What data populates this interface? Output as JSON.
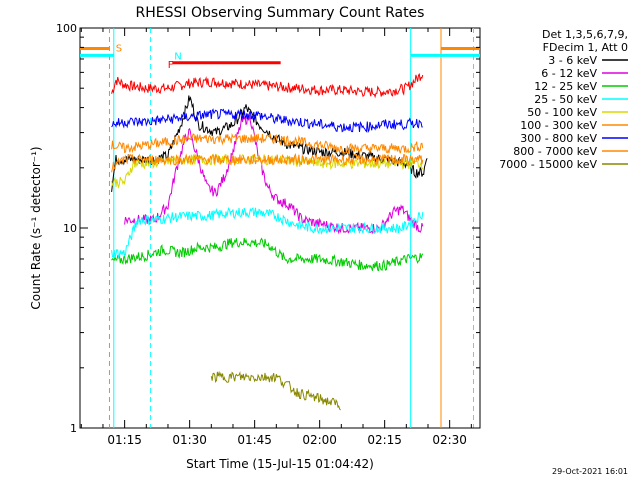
{
  "chart_data": {
    "type": "line",
    "title": "RHESSI Observing Summary Count Rates",
    "xlabel": "Start Time (15-Jul-15 01:04:42)",
    "ylabel": "Count Rate (s⁻¹ detector⁻¹)",
    "y_scale": "log",
    "ylim": [
      1,
      100
    ],
    "y_ticks": [
      1,
      10,
      100
    ],
    "y_tick_labels": [
      "1",
      "10",
      "100"
    ],
    "xlim": [
      "01:04:42",
      "02:37:00"
    ],
    "x_ticks": [
      "01:15",
      "01:30",
      "01:45",
      "02:00",
      "02:15",
      "02:30"
    ],
    "grid": false,
    "legend_position": "right",
    "legend_header": [
      "Det 1,3,5,6,7,9,",
      "FDecim 1, Att 0"
    ],
    "timestamp": "29-Oct-2021 16:01",
    "series": [
      {
        "name": "3 - 6 keV",
        "color": "#000000",
        "points": [
          [
            "01:12:00",
            16
          ],
          [
            "01:13:00",
            22
          ],
          [
            "01:15:00",
            22
          ],
          [
            "01:18:00",
            22
          ],
          [
            "01:20:00",
            22
          ],
          [
            "01:22:00",
            22
          ],
          [
            "01:25:00",
            23
          ],
          [
            "01:28:00",
            33
          ],
          [
            "01:30:00",
            45
          ],
          [
            "01:32:00",
            33
          ],
          [
            "01:36:00",
            30
          ],
          [
            "01:40:00",
            33
          ],
          [
            "01:43:00",
            40
          ],
          [
            "01:46:00",
            33
          ],
          [
            "01:50:00",
            28
          ],
          [
            "01:53:00",
            26
          ],
          [
            "01:56:00",
            25
          ],
          [
            "02:00:00",
            24
          ],
          [
            "02:05:00",
            24
          ],
          [
            "02:10:00",
            23
          ],
          [
            "02:15:00",
            22
          ],
          [
            "02:20:00",
            21
          ],
          [
            "02:22:00",
            19
          ],
          [
            "02:24:00",
            19
          ],
          [
            "02:25:00",
            24
          ]
        ]
      },
      {
        "name": "6 - 12 keV",
        "color": "#dd00dd",
        "points": [
          [
            "01:15:00",
            11
          ],
          [
            "01:20:00",
            11
          ],
          [
            "01:22:00",
            11
          ],
          [
            "01:25:00",
            13
          ],
          [
            "01:27:00",
            20
          ],
          [
            "01:29:00",
            28
          ],
          [
            "01:30:00",
            30
          ],
          [
            "01:32:00",
            22
          ],
          [
            "01:34:00",
            16
          ],
          [
            "01:36:00",
            15
          ],
          [
            "01:38:00",
            18
          ],
          [
            "01:40:00",
            24
          ],
          [
            "01:42:00",
            34
          ],
          [
            "01:44:00",
            36
          ],
          [
            "01:46:00",
            22
          ],
          [
            "01:48:00",
            16
          ],
          [
            "01:50:00",
            14
          ],
          [
            "01:53:00",
            13
          ],
          [
            "01:56:00",
            11
          ],
          [
            "02:00:00",
            10.5
          ],
          [
            "02:05:00",
            10
          ],
          [
            "02:10:00",
            10
          ],
          [
            "02:14:00",
            10
          ],
          [
            "02:17:00",
            12
          ],
          [
            "02:19:00",
            12.5
          ],
          [
            "02:21:00",
            11
          ],
          [
            "02:23:00",
            10
          ],
          [
            "02:24:00",
            10
          ]
        ]
      },
      {
        "name": "12 - 25 keV",
        "color": "#00cc00",
        "points": [
          [
            "01:12:00",
            6.8
          ],
          [
            "01:15:00",
            7
          ],
          [
            "01:20:00",
            7.3
          ],
          [
            "01:24:00",
            7.8
          ],
          [
            "01:28:00",
            7.5
          ],
          [
            "01:32:00",
            8
          ],
          [
            "01:36:00",
            8
          ],
          [
            "01:40:00",
            8.5
          ],
          [
            "01:44:00",
            8.5
          ],
          [
            "01:48:00",
            8.3
          ],
          [
            "01:52:00",
            7
          ],
          [
            "01:56:00",
            7
          ],
          [
            "02:00:00",
            7
          ],
          [
            "02:05:00",
            6.8
          ],
          [
            "02:10:00",
            6.5
          ],
          [
            "02:15:00",
            6.5
          ],
          [
            "02:20:00",
            7
          ],
          [
            "02:24:00",
            7.2
          ]
        ]
      },
      {
        "name": "25 - 50 keV",
        "color": "#00ffff",
        "points": [
          [
            "01:12:00",
            7.5
          ],
          [
            "01:14:00",
            7.5
          ],
          [
            "01:15:00",
            7.5
          ],
          [
            "01:18:00",
            11
          ],
          [
            "01:22:00",
            11
          ],
          [
            "01:26:00",
            11.3
          ],
          [
            "01:30:00",
            11.5
          ],
          [
            "01:34:00",
            11.5
          ],
          [
            "01:38:00",
            11.8
          ],
          [
            "01:42:00",
            12
          ],
          [
            "01:46:00",
            12
          ],
          [
            "01:50:00",
            11.5
          ],
          [
            "01:54:00",
            10.5
          ],
          [
            "01:58:00",
            10
          ],
          [
            "02:02:00",
            10
          ],
          [
            "02:06:00",
            10
          ],
          [
            "02:10:00",
            10
          ],
          [
            "02:15:00",
            10
          ],
          [
            "02:19:00",
            10
          ],
          [
            "02:22:00",
            11
          ],
          [
            "02:24:00",
            12
          ]
        ]
      },
      {
        "name": "50 - 100 keV",
        "color": "#d8d800",
        "points": [
          [
            "01:12:00",
            17
          ],
          [
            "01:14:00",
            17
          ],
          [
            "01:15:00",
            17
          ],
          [
            "01:17:00",
            21
          ],
          [
            "01:20:00",
            21
          ],
          [
            "01:25:00",
            21.5
          ],
          [
            "01:30:00",
            22
          ],
          [
            "01:35:00",
            22
          ],
          [
            "01:40:00",
            22
          ],
          [
            "01:45:00",
            22
          ],
          [
            "01:50:00",
            22
          ],
          [
            "01:55:00",
            21.5
          ],
          [
            "02:00:00",
            21
          ],
          [
            "02:05:00",
            21
          ],
          [
            "02:10:00",
            21
          ],
          [
            "02:15:00",
            21
          ],
          [
            "02:20:00",
            21
          ],
          [
            "02:24:00",
            21
          ]
        ]
      },
      {
        "name": "100 - 300 keV",
        "color": "#ff8800",
        "points": [
          [
            "01:12:00",
            26
          ],
          [
            "01:15:00",
            25
          ],
          [
            "01:20:00",
            26
          ],
          [
            "01:25:00",
            27
          ],
          [
            "01:30:00",
            28
          ],
          [
            "01:35:00",
            28
          ],
          [
            "01:40:00",
            28
          ],
          [
            "01:45:00",
            28
          ],
          [
            "01:50:00",
            28
          ],
          [
            "01:55:00",
            27
          ],
          [
            "02:00:00",
            26
          ],
          [
            "02:05:00",
            25
          ],
          [
            "02:10:00",
            25
          ],
          [
            "02:15:00",
            25
          ],
          [
            "02:20:00",
            25
          ],
          [
            "02:24:00",
            26
          ]
        ]
      },
      {
        "name": "300 - 800 keV",
        "color": "#0000ff",
        "points": [
          [
            "01:12:00",
            33
          ],
          [
            "01:15:00",
            34
          ],
          [
            "01:20:00",
            34
          ],
          [
            "01:25:00",
            35
          ],
          [
            "01:30:00",
            36
          ],
          [
            "01:35:00",
            37
          ],
          [
            "01:40:00",
            37
          ],
          [
            "01:45:00",
            37
          ],
          [
            "01:50:00",
            35
          ],
          [
            "01:55:00",
            34
          ],
          [
            "02:00:00",
            33
          ],
          [
            "02:05:00",
            32
          ],
          [
            "02:10:00",
            32
          ],
          [
            "02:15:00",
            33
          ],
          [
            "02:20:00",
            33
          ],
          [
            "02:24:00",
            34
          ]
        ]
      },
      {
        "name": "800 - 7000 keV",
        "color": "#ff8800",
        "points": [
          [
            "01:12:00",
            20
          ],
          [
            "01:15:00",
            22
          ],
          [
            "01:20:00",
            22
          ],
          [
            "01:25:00",
            22
          ],
          [
            "01:30:00",
            22
          ],
          [
            "01:35:00",
            22
          ],
          [
            "01:40:00",
            22
          ],
          [
            "01:45:00",
            22
          ],
          [
            "01:50:00",
            22
          ],
          [
            "01:55:00",
            22
          ],
          [
            "02:00:00",
            22
          ],
          [
            "02:05:00",
            22
          ],
          [
            "02:10:00",
            22
          ],
          [
            "02:15:00",
            22
          ],
          [
            "02:20:00",
            22
          ],
          [
            "02:24:00",
            22
          ]
        ]
      },
      {
        "name": "7000 - 15000 keV",
        "color": "#888800",
        "points": [
          [
            "01:35:00",
            1.8
          ],
          [
            "01:38:00",
            1.8
          ],
          [
            "01:42:00",
            1.8
          ],
          [
            "01:45:00",
            1.8
          ],
          [
            "01:48:00",
            1.8
          ],
          [
            "01:50:00",
            1.8
          ],
          [
            "01:55:00",
            1.5
          ],
          [
            "02:00:00",
            1.4
          ],
          [
            "02:05:00",
            1.3
          ]
        ]
      }
    ],
    "top_series": {
      "name": "",
      "color": "#ff0000",
      "points": [
        [
          "01:12:00",
          47
        ],
        [
          "01:13:00",
          55
        ],
        [
          "01:15:00",
          52
        ],
        [
          "01:20:00",
          50
        ],
        [
          "01:25:00",
          50
        ],
        [
          "01:30:00",
          53
        ],
        [
          "01:35:00",
          54
        ],
        [
          "01:40:00",
          53
        ],
        [
          "01:45:00",
          52
        ],
        [
          "01:50:00",
          51
        ],
        [
          "01:55:00",
          50
        ],
        [
          "02:00:00",
          49
        ],
        [
          "02:05:00",
          49
        ],
        [
          "02:10:00",
          48
        ],
        [
          "02:15:00",
          48
        ],
        [
          "02:20:00",
          50
        ],
        [
          "02:24:00",
          60
        ]
      ]
    },
    "attenuator_state_bars": [
      {
        "label": "",
        "color": "#ff8800",
        "level": 79,
        "from": "01:04:42",
        "to": "01:11:30"
      },
      {
        "label": "",
        "color": "#00ffff",
        "level": 73,
        "from": "01:04:42",
        "to": "01:12:30"
      },
      {
        "label": "",
        "color": "#00ffff",
        "level": 73,
        "from": "02:21:00",
        "to": "02:37:00"
      },
      {
        "label": "",
        "color": "#ff8800",
        "level": 79,
        "from": "02:28:00",
        "to": "02:37:00"
      },
      {
        "label": "",
        "color": "#ff0000",
        "level": 67,
        "from": "01:26:00",
        "to": "01:51:00"
      }
    ],
    "flag_labels": [
      {
        "text": "S",
        "color": "#ff8800",
        "at": "01:12:30",
        "level": 80
      },
      {
        "text": "N",
        "color": "#00ffff",
        "at": "01:26:00",
        "level": 73
      },
      {
        "text": "F",
        "color": "#ff0000",
        "at": "01:24:30",
        "level": 66
      }
    ],
    "vertical_markers": [
      {
        "color": "#ff8800",
        "style": "dashed",
        "at": "01:11:30"
      },
      {
        "color": "#00ffff",
        "style": "solid",
        "at": "01:12:30"
      },
      {
        "color": "#00ffff",
        "style": "dashed",
        "at": "01:21:00"
      },
      {
        "color": "#00ffff",
        "style": "solid",
        "at": "02:21:00"
      },
      {
        "color": "#ff8800",
        "style": "solid",
        "at": "02:28:00"
      },
      {
        "color": "#00ffff",
        "style": "dashed",
        "at": "02:35:30"
      }
    ]
  }
}
